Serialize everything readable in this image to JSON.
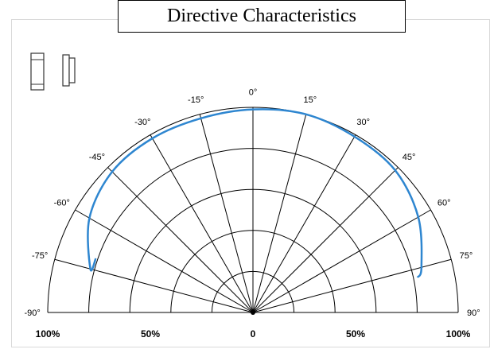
{
  "chart_data": {
    "type": "polar",
    "title": "Directive Characteristics",
    "angle_unit": "degrees",
    "angle_labels": [
      "-90°",
      "-75°",
      "-60°",
      "-45°",
      "-30°",
      "-15°",
      "0°",
      "15°",
      "30°",
      "45°",
      "60°",
      "75°",
      "90°"
    ],
    "radial_labels": [
      "100%",
      "50%",
      "0",
      "50%",
      "100%"
    ],
    "radial_range": [
      0,
      100
    ],
    "grid": true,
    "series": [
      {
        "color": "#2e86d0",
        "points": [
          {
            "angle": -71,
            "r": 81
          },
          {
            "angle": -75,
            "r": 82
          },
          {
            "angle": -60,
            "r": 92
          },
          {
            "angle": -45,
            "r": 97
          },
          {
            "angle": -30,
            "r": 98
          },
          {
            "angle": -15,
            "r": 98
          },
          {
            "angle": 0,
            "r": 99
          },
          {
            "angle": 15,
            "r": 100
          },
          {
            "angle": 30,
            "r": 99
          },
          {
            "angle": 45,
            "r": 98
          },
          {
            "angle": 60,
            "r": 93
          },
          {
            "angle": 75,
            "r": 85
          },
          {
            "angle": 78,
            "r": 82
          }
        ]
      }
    ]
  },
  "icons": [
    "led-front-view-icon",
    "led-side-view-icon"
  ]
}
